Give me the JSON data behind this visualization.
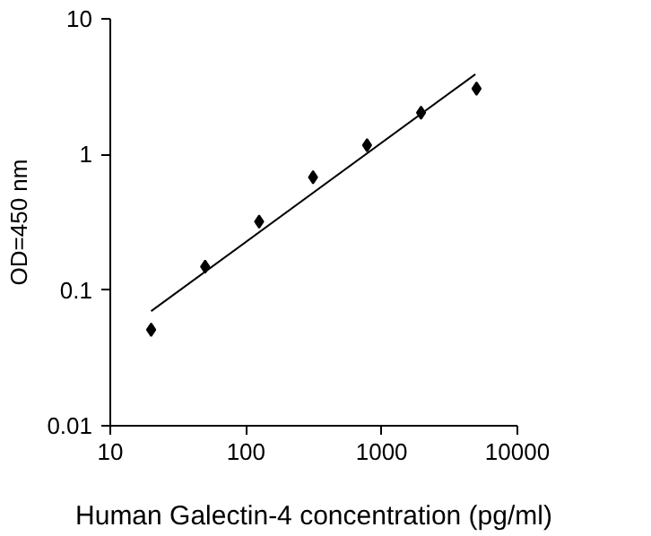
{
  "chart_data": {
    "type": "scatter",
    "xlabel": "Human Galectin-4 concentration (pg/ml)",
    "ylabel": "OD=450 nm",
    "log": "xy",
    "xlim": [
      10,
      10000
    ],
    "ylim": [
      0.01,
      10
    ],
    "xticks": [
      10,
      100,
      1000,
      10000
    ],
    "yticks": [
      0.01,
      0.1,
      1,
      10
    ],
    "grid": false,
    "marker": "diamond",
    "series": [
      {
        "color": "#000000",
        "x": [
          20,
          50,
          125,
          312,
          780,
          1950,
          5000
        ],
        "values": [
          0.051,
          0.149,
          0.32,
          0.68,
          1.17,
          2.03,
          3.06
        ]
      },
      {
        "type": "line",
        "color": "#000000",
        "line_style": "solid",
        "marker": "none",
        "x": [
          20,
          4900
        ],
        "values": [
          0.07,
          3.9
        ]
      }
    ]
  }
}
